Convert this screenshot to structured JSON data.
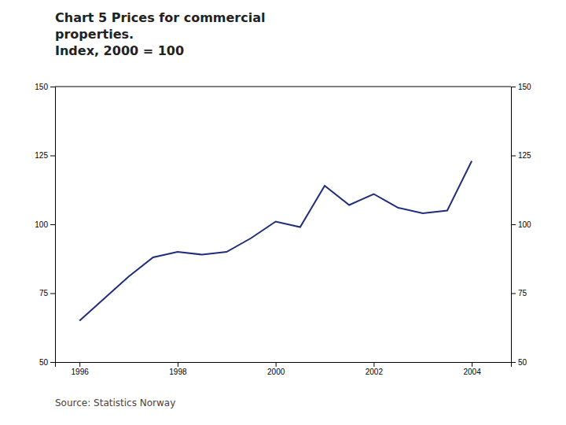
{
  "chart_data": {
    "type": "line",
    "title": "Chart 5 Prices for commercial\nproperties.\nIndex, 2000 = 100",
    "annotations": [
      "Source: Statistics Norway"
    ],
    "x": [
      1996,
      1996.5,
      1997,
      1997.5,
      1998,
      1998.5,
      1999,
      1999.5,
      2000,
      2000.5,
      2001,
      2001.5,
      2002,
      2002.5,
      2003,
      2003.5,
      2004
    ],
    "values": [
      65,
      73,
      81,
      88,
      90,
      89,
      90,
      95,
      101,
      99,
      114,
      107,
      111,
      106,
      104,
      105,
      123
    ],
    "color": "#1f2d7a",
    "xlim": [
      1995.5,
      2004.8
    ],
    "ylim": [
      50,
      150
    ],
    "xticks": [
      1996,
      1998,
      2000,
      2002,
      2004
    ],
    "yticks": [
      50,
      75,
      100,
      125,
      150
    ],
    "grid": false
  }
}
